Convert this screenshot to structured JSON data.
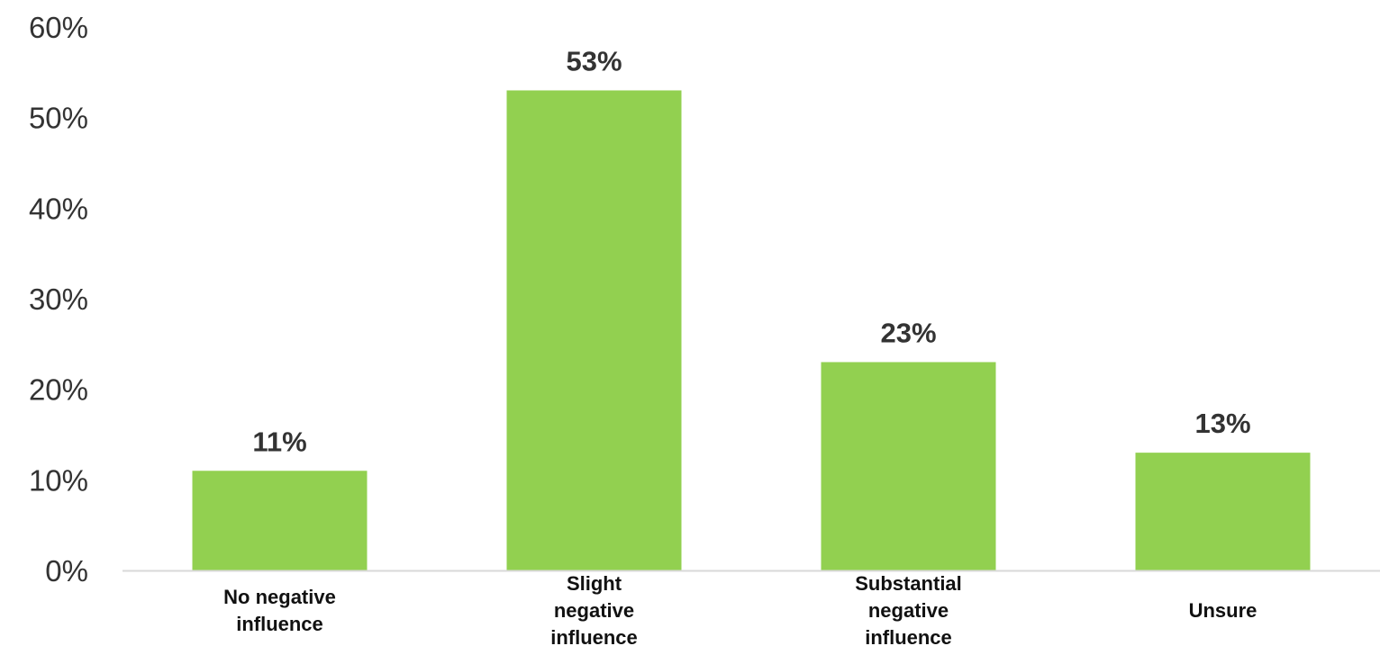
{
  "chart_data": {
    "type": "bar",
    "categories": [
      [
        "No negative",
        "influence"
      ],
      [
        "Slight",
        "negative",
        "influence"
      ],
      [
        "Substantial",
        "negative",
        "influence"
      ],
      [
        "Unsure"
      ]
    ],
    "values": [
      11,
      53,
      23,
      13
    ],
    "data_labels": [
      "11%",
      "53%",
      "23%",
      "13%"
    ],
    "ylim": [
      0,
      60
    ],
    "yticks": [
      0,
      10,
      20,
      30,
      40,
      50,
      60
    ],
    "ytick_labels": [
      "0%",
      "10%",
      "20%",
      "30%",
      "40%",
      "50%",
      "60%"
    ],
    "title": "",
    "xlabel": "",
    "ylabel": "",
    "grid": false,
    "legend": "none",
    "bar_color": "#92D050",
    "axis_color": "#D9D9D9"
  }
}
